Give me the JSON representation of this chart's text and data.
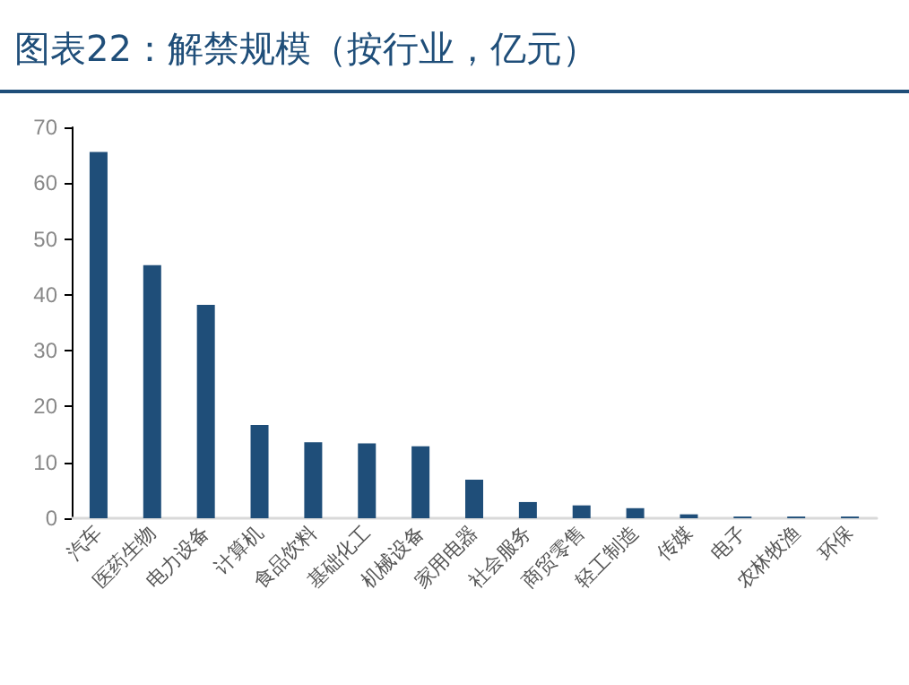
{
  "chart_data": {
    "type": "bar",
    "title": "图表22：解禁规模（按行业，亿元）",
    "categories": [
      "汽车",
      "医药生物",
      "电力设备",
      "计算机",
      "食品饮料",
      "基础化工",
      "机械设备",
      "家用电器",
      "社会服务",
      "商贸零售",
      "轻工制造",
      "传媒",
      "电子",
      "农林牧渔",
      "环保"
    ],
    "values": [
      65.6,
      45.3,
      38.2,
      16.7,
      13.6,
      13.4,
      12.9,
      6.9,
      2.9,
      2.3,
      1.8,
      0.7,
      0.3,
      0.3,
      0.3
    ],
    "color": "#1f4e79",
    "ylim": [
      0,
      70
    ],
    "yticks": [
      0,
      10,
      20,
      30,
      40,
      50,
      60,
      70
    ],
    "grid": false
  }
}
